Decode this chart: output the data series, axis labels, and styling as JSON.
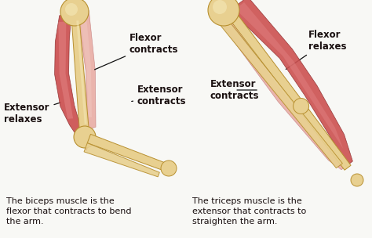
{
  "bg_color": "#f8f8f5",
  "bone_color": "#e8d090",
  "bone_highlight": "#f5e8b8",
  "bone_shadow": "#c8a840",
  "bone_edge": "#b89030",
  "muscle_red": "#cc5050",
  "muscle_red_light": "#e08080",
  "muscle_pink": "#e8a8a0",
  "muscle_pink_light": "#f0c8c0",
  "muscle_white": "#f8e8e5",
  "text_color": "#1a1010",
  "arrow_color": "#111111",
  "label_fontsize": 8.5,
  "caption_fontsize": 8,
  "caption_left": "The biceps muscle is the\nflexor that contracts to bend\nthe arm.",
  "caption_right": "The triceps muscle is the\nextensor that contracts to\nstraighten the arm."
}
